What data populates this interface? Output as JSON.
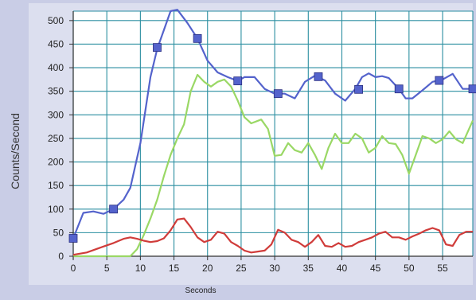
{
  "chart_data": {
    "type": "line",
    "xlabel": "Seconds",
    "ylabel": "Counts/Second",
    "xlim": [
      0,
      59.5
    ],
    "ylim": [
      0,
      520
    ],
    "xticks": [
      0,
      5,
      10,
      15,
      20,
      25,
      30,
      35,
      40,
      45,
      50,
      55
    ],
    "yticks": [
      0,
      50,
      100,
      150,
      200,
      250,
      300,
      350,
      400,
      450,
      500
    ],
    "grid": true,
    "colors": {
      "blue": "#5463cc",
      "green": "#9ad865",
      "red": "#d03c3a",
      "grid": "#2a8ea0",
      "plot_bg": "#ffffff",
      "page_bg": "#c9cde6"
    },
    "series": [
      {
        "color": "#5463cc",
        "marker": "square",
        "x": [
          0,
          1.5,
          3,
          4.5,
          6,
          7.5,
          8.5,
          10,
          11.5,
          12.5,
          13.5,
          14.5,
          15.5,
          17,
          18.5,
          20,
          21.5,
          23,
          24.5,
          25.5,
          27,
          28.5,
          30,
          31.5,
          33,
          34.5,
          36,
          37.5,
          39,
          40.5,
          42,
          43,
          44,
          45,
          46,
          47,
          48.5,
          49.5,
          50.5,
          52,
          53.5,
          55,
          56.5,
          58,
          59.5
        ],
        "y": [
          38,
          92,
          95,
          90,
          100,
          120,
          145,
          240,
          380,
          440,
          480,
          520,
          523,
          495,
          462,
          415,
          390,
          380,
          372,
          380,
          380,
          355,
          345,
          345,
          335,
          370,
          383,
          373,
          345,
          330,
          355,
          380,
          388,
          380,
          382,
          378,
          355,
          335,
          335,
          352,
          370,
          375,
          387,
          355,
          355
        ],
        "markers_x": [
          0,
          6,
          12.5,
          18.5,
          24.5,
          30.5,
          36.5,
          42.5,
          48.5,
          54.5,
          59.5
        ],
        "markers_y": [
          38,
          100,
          443,
          462,
          372,
          345,
          381,
          354,
          355,
          373,
          355
        ]
      },
      {
        "color": "#9ad865",
        "x": [
          0,
          3,
          6,
          8.5,
          9.5,
          10.5,
          11.5,
          12.5,
          13.5,
          14.5,
          15.5,
          16.5,
          17.5,
          18.5,
          19.5,
          20.5,
          21.5,
          22.5,
          23.5,
          24.5,
          25.5,
          26.5,
          28,
          29,
          30,
          31,
          32,
          33,
          34,
          35,
          36,
          37,
          38,
          39,
          40,
          41,
          42,
          43,
          44,
          45,
          46,
          47,
          48,
          49,
          50,
          51,
          52,
          53,
          54,
          55,
          56,
          57,
          58,
          59.5
        ],
        "y": [
          0,
          0,
          0,
          0,
          15,
          45,
          80,
          120,
          170,
          215,
          250,
          280,
          350,
          385,
          370,
          360,
          370,
          375,
          360,
          330,
          295,
          282,
          290,
          270,
          213,
          215,
          240,
          225,
          220,
          240,
          215,
          185,
          230,
          260,
          240,
          240,
          260,
          250,
          220,
          230,
          255,
          240,
          238,
          215,
          175,
          215,
          255,
          250,
          240,
          248,
          265,
          248,
          240,
          288
        ]
      },
      {
        "color": "#d03c3a",
        "x": [
          0,
          2,
          4,
          6,
          7.5,
          8.5,
          9.5,
          10.5,
          11.5,
          12.5,
          13.5,
          14.5,
          15.5,
          16.5,
          17.5,
          18.5,
          19.5,
          20.5,
          21.5,
          22.5,
          23.5,
          24.5,
          25.5,
          26.5,
          27.5,
          28.5,
          29.5,
          30.5,
          31.5,
          32.5,
          33.5,
          34.5,
          35.5,
          36.5,
          37.5,
          38.5,
          39.5,
          40.5,
          41.5,
          42.5,
          43.5,
          44.5,
          45.5,
          46.5,
          47.5,
          48.5,
          49.5,
          50.5,
          51.5,
          52.5,
          53.5,
          54.5,
          55.5,
          56.5,
          57.5,
          58.5,
          59.5
        ],
        "y": [
          3,
          8,
          18,
          28,
          37,
          40,
          37,
          33,
          30,
          32,
          38,
          55,
          78,
          80,
          62,
          40,
          30,
          35,
          52,
          48,
          30,
          22,
          12,
          8,
          10,
          12,
          25,
          56,
          50,
          35,
          30,
          20,
          30,
          45,
          22,
          20,
          28,
          20,
          22,
          30,
          35,
          40,
          48,
          52,
          40,
          40,
          35,
          42,
          48,
          55,
          60,
          55,
          25,
          22,
          45,
          52,
          52
        ]
      }
    ]
  }
}
